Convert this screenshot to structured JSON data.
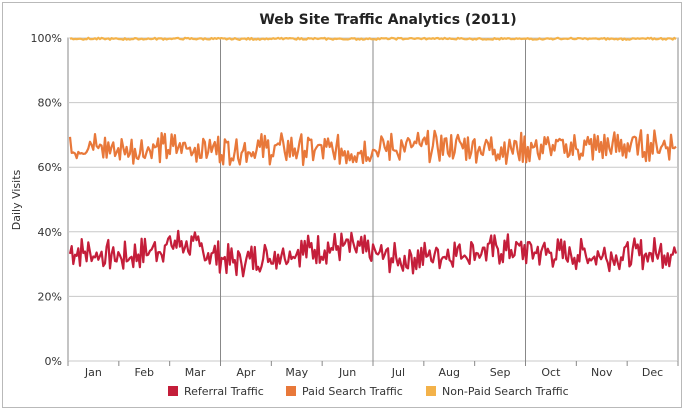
{
  "chart_data": {
    "type": "line",
    "title": "Web Site Traffic Analytics (2011)",
    "xlabel": "",
    "ylabel": "Daily Visits",
    "ylim": [
      0,
      100
    ],
    "y_ticks": [
      "0%",
      "20%",
      "40%",
      "60%",
      "80%",
      "100%"
    ],
    "categories": [
      "Jan",
      "Feb",
      "Mar",
      "Apr",
      "May",
      "Jun",
      "Jul",
      "Aug",
      "Sep",
      "Oct",
      "Nov",
      "Dec"
    ],
    "grid": true,
    "legend_position": "bottom",
    "series": [
      {
        "name": "Referral Traffic",
        "color": "#c41e3a",
        "values": [
          34.2,
          32.1,
          36.8,
          30.5,
          33.9,
          35.4,
          31.2,
          33.8,
          34.6,
          33.1,
          32.7,
          34.0
        ]
      },
      {
        "name": "Paid Search Traffic",
        "color": "#e8783a",
        "values": [
          66.8,
          65.4,
          66.1,
          65.6,
          65.8,
          65.0,
          66.3,
          66.6,
          65.9,
          66.0,
          66.5,
          67.0
        ]
      },
      {
        "name": "Non-Paid Search Traffic",
        "color": "#f3b24a",
        "values": [
          99.8,
          99.7,
          99.8,
          99.7,
          99.8,
          99.7,
          99.8,
          99.8,
          99.7,
          99.8,
          99.7,
          99.8
        ]
      }
    ]
  }
}
